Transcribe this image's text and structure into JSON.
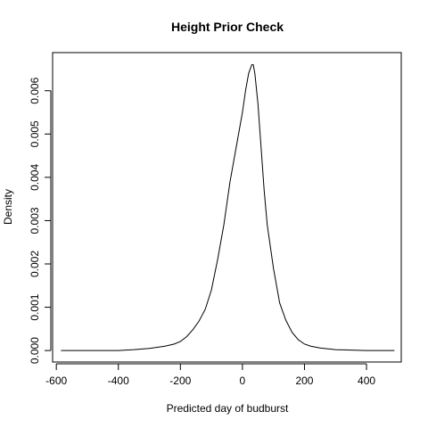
{
  "chart_data": {
    "type": "line",
    "title": "Height Prior Check",
    "xlabel": "Predicted day of budburst",
    "ylabel": "Density",
    "xlim": [
      -612,
      512
    ],
    "ylim": [
      -0.000265,
      0.00688
    ],
    "xticks": [
      "-600",
      "-400",
      "-200",
      "0",
      "200",
      "400"
    ],
    "yticks": [
      "0.000",
      "0.001",
      "0.002",
      "0.003",
      "0.004",
      "0.005",
      "0.006"
    ],
    "grid": false,
    "series": [
      {
        "x": [
          -585,
          -500,
          -400,
          -350,
          -300,
          -250,
          -220,
          -200,
          -180,
          -160,
          -140,
          -120,
          -100,
          -80,
          -60,
          -40,
          -20,
          0,
          10,
          20,
          30,
          35,
          40,
          50,
          60,
          70,
          80,
          100,
          120,
          140,
          160,
          180,
          200,
          220,
          250,
          300,
          350,
          400,
          450,
          490
        ],
        "y": [
          0.0,
          0.0,
          0.0,
          2e-05,
          5e-05,
          0.0001,
          0.00015,
          0.00021,
          0.00032,
          0.00048,
          0.00068,
          0.00095,
          0.0014,
          0.0021,
          0.0029,
          0.0039,
          0.0047,
          0.0055,
          0.006,
          0.0064,
          0.0066,
          0.0066,
          0.0064,
          0.0057,
          0.0047,
          0.0037,
          0.0029,
          0.0019,
          0.0011,
          0.0007,
          0.00042,
          0.00025,
          0.00015,
          0.0001,
          6e-05,
          2e-05,
          1e-05,
          0.0,
          0.0,
          0.0
        ]
      }
    ]
  }
}
